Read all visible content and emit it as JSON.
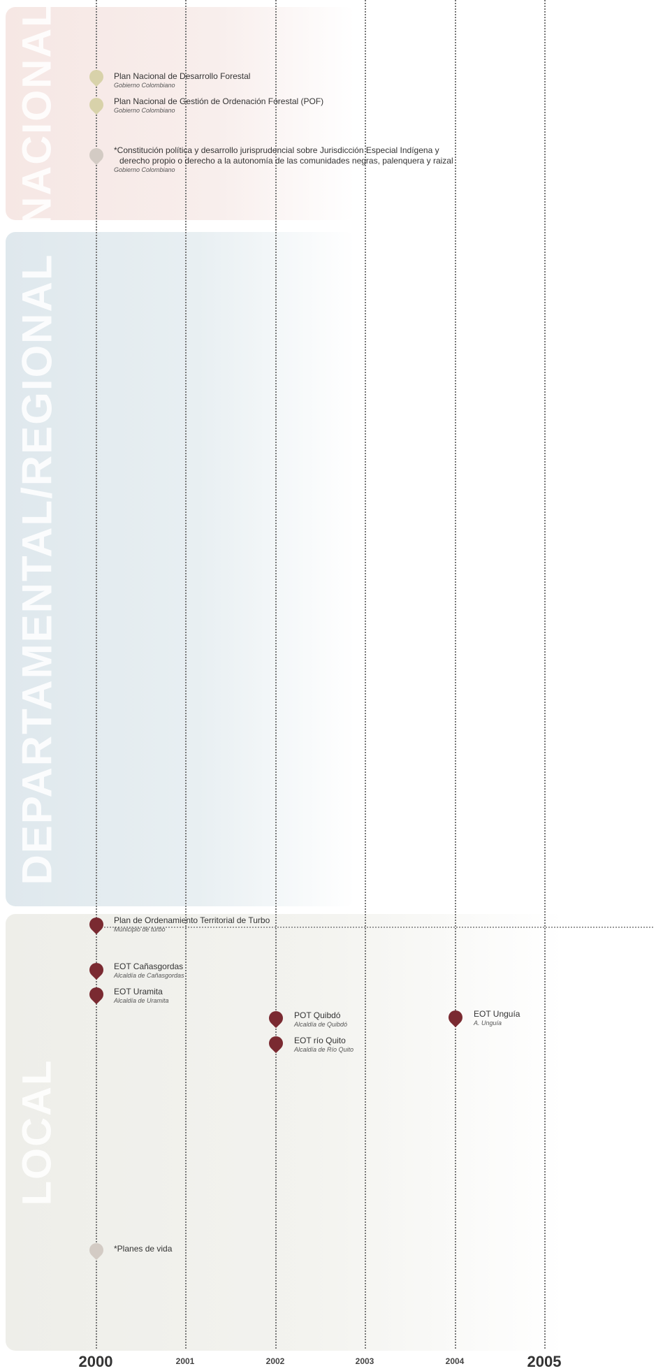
{
  "bands": [
    {
      "id": "nacional",
      "label": "NACIONAL",
      "color": "#f6e9e6"
    },
    {
      "id": "departamental",
      "label": "DEPARTAMENTAL/REGIONAL",
      "color": "#e3ebef"
    },
    {
      "id": "local",
      "label": "LOCAL",
      "color": "#eeeee9"
    }
  ],
  "years": [
    {
      "label": "2000",
      "major": true
    },
    {
      "label": "2001",
      "major": false
    },
    {
      "label": "2002",
      "major": false
    },
    {
      "label": "2003",
      "major": false
    },
    {
      "label": "2004",
      "major": false
    },
    {
      "label": "2005",
      "major": true
    }
  ],
  "events": [
    {
      "year": 2000,
      "band": "nacional",
      "marker": "nat",
      "title": "Plan Nacional de Desarrollo Forestal",
      "subtitle": "Gobierno Colombiano"
    },
    {
      "year": 2000,
      "band": "nacional",
      "marker": "nat",
      "title": "Plan Nacional de Gestión de Ordenación Forestal (POF)",
      "subtitle": "Gobierno Colombiano"
    },
    {
      "year": 2000,
      "band": "nacional",
      "marker": "grey",
      "title": "*Constitución política y desarrollo jurisprudencial sobre Jurisdicción Especial Indígena y",
      "title2": "derecho propio o derecho a la autonomía de las comunidades negras, palenquera y raizal",
      "subtitle": "Gobierno Colombiano"
    },
    {
      "year": 2000,
      "band": "local",
      "marker": "local",
      "title": "Plan de Ordenamiento Territorial de Turbo",
      "subtitle": "Municipio de turbo"
    },
    {
      "year": 2000,
      "band": "local",
      "marker": "local",
      "title": "EOT Cañasgordas",
      "subtitle": "Alcaldía de Cañasgordas"
    },
    {
      "year": 2000,
      "band": "local",
      "marker": "local",
      "title": "EOT Uramita",
      "subtitle": "Alcaldía de Uramita"
    },
    {
      "year": 2002,
      "band": "local",
      "marker": "local",
      "title": "POT Quibdó",
      "subtitle": "Alcaldía de Quibdó"
    },
    {
      "year": 2002,
      "band": "local",
      "marker": "local",
      "title": "EOT río Quito",
      "subtitle": "Alcaldía de Río Quito"
    },
    {
      "year": 2004,
      "band": "local",
      "marker": "local",
      "title": "EOT Unguía",
      "subtitle": "A. Unguía"
    },
    {
      "year": 2000,
      "band": "local",
      "marker": "grey",
      "title": "*Planes de vida",
      "subtitle": ""
    }
  ]
}
